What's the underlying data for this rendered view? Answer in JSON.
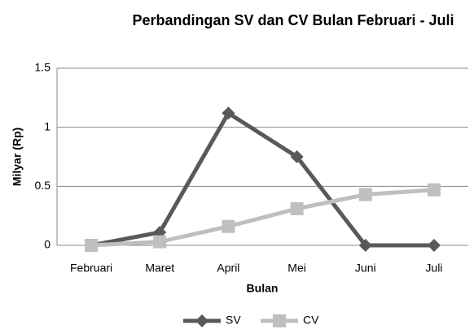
{
  "chart_data": {
    "type": "line",
    "title": "Perbandingan SV dan CV Bulan Februari - Juli",
    "x_label": "Bulan",
    "y_label": "Milyar (Rp)",
    "categories": [
      "Februari",
      "Maret",
      "April",
      "Mei",
      "Juni",
      "Juli"
    ],
    "series": [
      {
        "name": "SV",
        "color": "#595959",
        "marker": "diamond",
        "values": [
          0,
          0.11,
          1.12,
          0.75,
          0,
          0
        ]
      },
      {
        "name": "CV",
        "color": "#bfbfbf",
        "marker": "square",
        "values": [
          0,
          0.03,
          0.16,
          0.31,
          0.43,
          0.47
        ]
      }
    ],
    "ylim": [
      0,
      1.5
    ],
    "yticks": [
      0,
      0.5,
      1,
      1.5
    ],
    "grid": true,
    "legend": "bottom"
  }
}
